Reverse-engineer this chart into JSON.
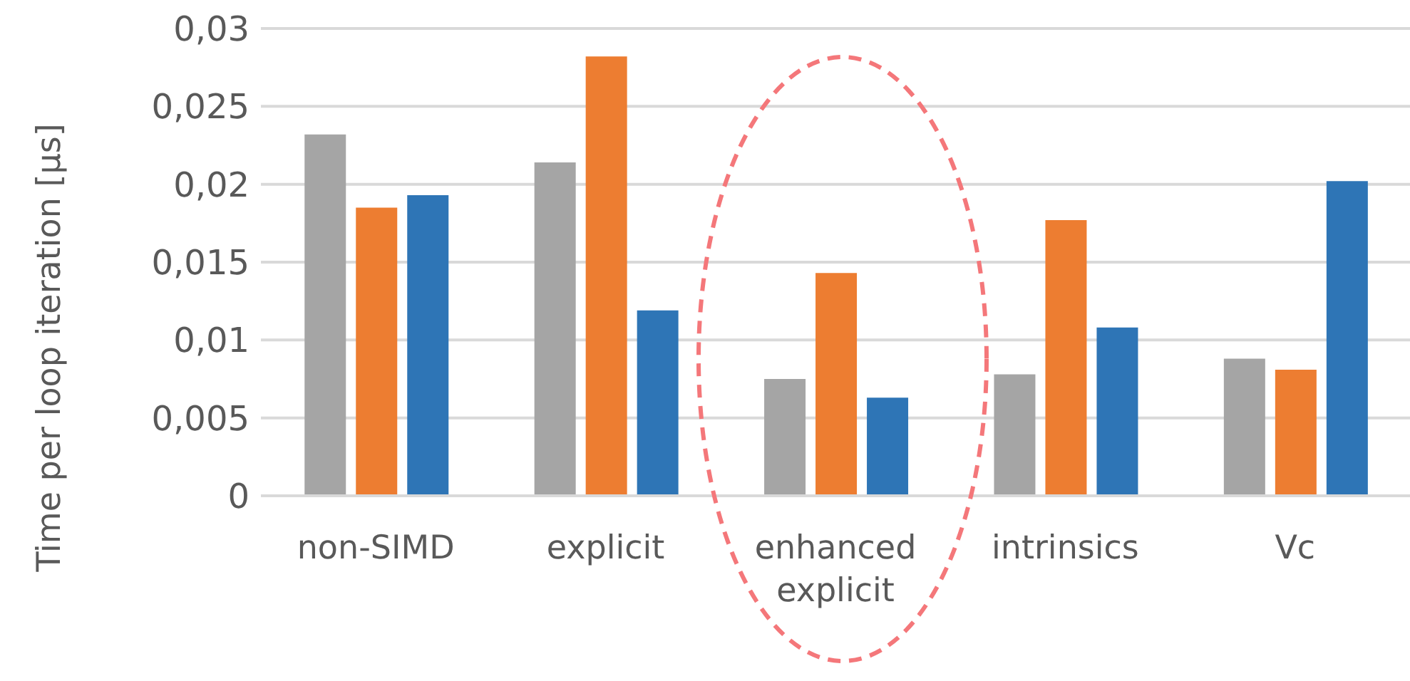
{
  "chart_data": {
    "type": "bar",
    "ylabel": "Time per loop iteration [µs]",
    "categories": [
      "non-SIMD",
      "explicit",
      "enhanced explicit",
      "intrinsics",
      "Vc"
    ],
    "series": [
      {
        "color": "#a5a5a5",
        "values": [
          0.0232,
          0.0214,
          0.0075,
          0.0078,
          0.0088
        ]
      },
      {
        "color": "#ed7d31",
        "values": [
          0.0185,
          0.0282,
          0.0143,
          0.0177,
          0.0081
        ]
      },
      {
        "color": "#2e75b6",
        "values": [
          0.0193,
          0.0119,
          0.0063,
          0.0108,
          0.0202
        ]
      }
    ],
    "ylim": [
      0,
      0.03
    ],
    "yticks": [
      0,
      {
        "value": 0.005,
        "label": "0,005"
      },
      {
        "value": 0.01,
        "label": "0,01"
      },
      {
        "value": 0.015,
        "label": "0,015"
      },
      {
        "value": 0.02,
        "label": "0,02"
      },
      {
        "value": 0.025,
        "label": "0,025"
      },
      {
        "value": 0.03,
        "label": "0,03"
      }
    ],
    "grid": "y",
    "legend": false
  }
}
